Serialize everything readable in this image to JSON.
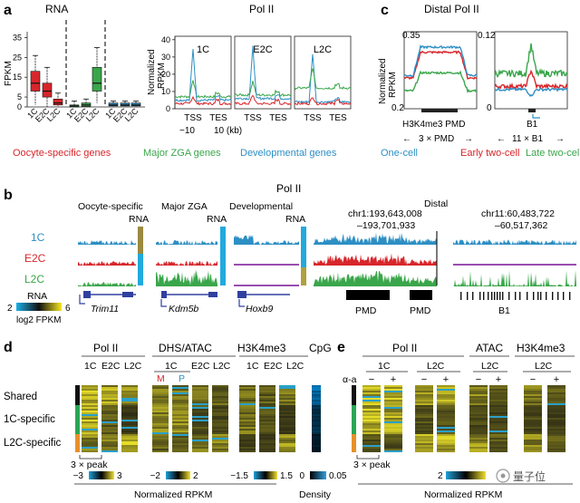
{
  "panels": {
    "a": {
      "letter": "a",
      "rna_title": "RNA",
      "rna_ylabel": "FPKM",
      "rna_yticks": [
        "35",
        "25",
        "15",
        "5",
        "0"
      ],
      "rna_xlabels": [
        "1C",
        "E2C",
        "L2C",
        "1C",
        "E2C",
        "L2C",
        "1C",
        "E2C",
        "L2C"
      ],
      "pol_title": "Pol II",
      "pol_ylabel_1": "Normalized",
      "pol_ylabel_2": "RPKM",
      "pol_yticks": [
        "40",
        "30",
        "20",
        "10",
        "0"
      ],
      "pol_subtitles": [
        "1C",
        "E2C",
        "L2C"
      ],
      "pol_xticks": [
        "TSS",
        "TES",
        "TSS",
        "TES",
        "TSS",
        "TES"
      ],
      "pol_scale_left": "−10",
      "pol_scale_right": "10 (kb)",
      "legend": [
        {
          "label": "Oocyte-specific genes",
          "color": "#d7262b"
        },
        {
          "label": "Major ZGA genes",
          "color": "#3aa64b"
        },
        {
          "label": "Developmental genes",
          "color": "#2d8fc4"
        }
      ]
    },
    "c": {
      "letter": "c",
      "title": "Distal Pol II",
      "ylabel_1": "Normalized",
      "ylabel_2": "RPKM",
      "left_ytop": "0.35",
      "left_ybot": "0.2",
      "right_ytop": "0.12",
      "right_ybot": "0",
      "left_xlabel": "H3K4me3 PMD",
      "left_span": "3 × PMD",
      "right_xlabel": "B1",
      "right_span": "11 × B1",
      "legend": [
        {
          "label": "One-cell",
          "color": "#2d8fc4"
        },
        {
          "label": "Early two-cell",
          "color": "#d7262b"
        },
        {
          "label": "Late two-cell",
          "color": "#3aa64b"
        }
      ]
    },
    "b": {
      "letter": "b",
      "title": "Pol II",
      "groups": [
        "Oocyte-specific",
        "Major ZGA",
        "Developmental",
        "Distal"
      ],
      "rna_label": "RNA",
      "rows": [
        {
          "label": "1C",
          "color": "#2d8fc4"
        },
        {
          "label": "E2C",
          "color": "#d7262b"
        },
        {
          "label": "L2C",
          "color": "#3aa64b"
        }
      ],
      "locus1_line1": "chr1:193,643,008",
      "locus1_line2": "–193,701,933",
      "locus2_line1": "chr11:60,483,722",
      "locus2_line2": "–60,517,362",
      "genes": [
        "Trim11",
        "Kdm5b",
        "Hoxb9"
      ],
      "pmd_labels": [
        "PMD",
        "PMD"
      ],
      "b1_label": "B1",
      "scale_title": "RNA",
      "scale_min": "2",
      "scale_max": "6",
      "scale_unit": "log2 FPKM"
    },
    "d": {
      "letter": "d",
      "headers": [
        "Pol II",
        "DHS/ATAC",
        "H3K4me3",
        "CpG"
      ],
      "pol_cols": [
        "1C",
        "E2C",
        "L2C"
      ],
      "dhs_sub": "1C",
      "dhs_cols": [
        "E2C",
        "L2C"
      ],
      "mp": [
        "M",
        "P"
      ],
      "h3_cols": [
        "1C",
        "E2C",
        "L2C"
      ],
      "rows": [
        "Shared",
        "1C-specific",
        "L2C-specific"
      ],
      "peak_note": "3 × peak",
      "scales": [
        {
          "min": "−3",
          "max": "3"
        },
        {
          "min": "−2",
          "max": "2"
        },
        {
          "min": "−1.5",
          "max": "1.5"
        },
        {
          "min": "0",
          "max": "0.05"
        }
      ],
      "footer": "Normalized RPKM",
      "density": "Density"
    },
    "e": {
      "letter": "e",
      "headers": [
        "Pol II",
        "ATAC",
        "H3K4me3"
      ],
      "pol_cols": [
        "1C",
        "L2C"
      ],
      "atac_cols": [
        "L2C"
      ],
      "h3_cols": [
        "L2C"
      ],
      "alpha": "α-a",
      "minus": "−",
      "plus": "+",
      "peak_note": "3 × peak",
      "scale_min": "2",
      "footer": "Normalized RPKM",
      "watermark": "量子位"
    }
  }
}
